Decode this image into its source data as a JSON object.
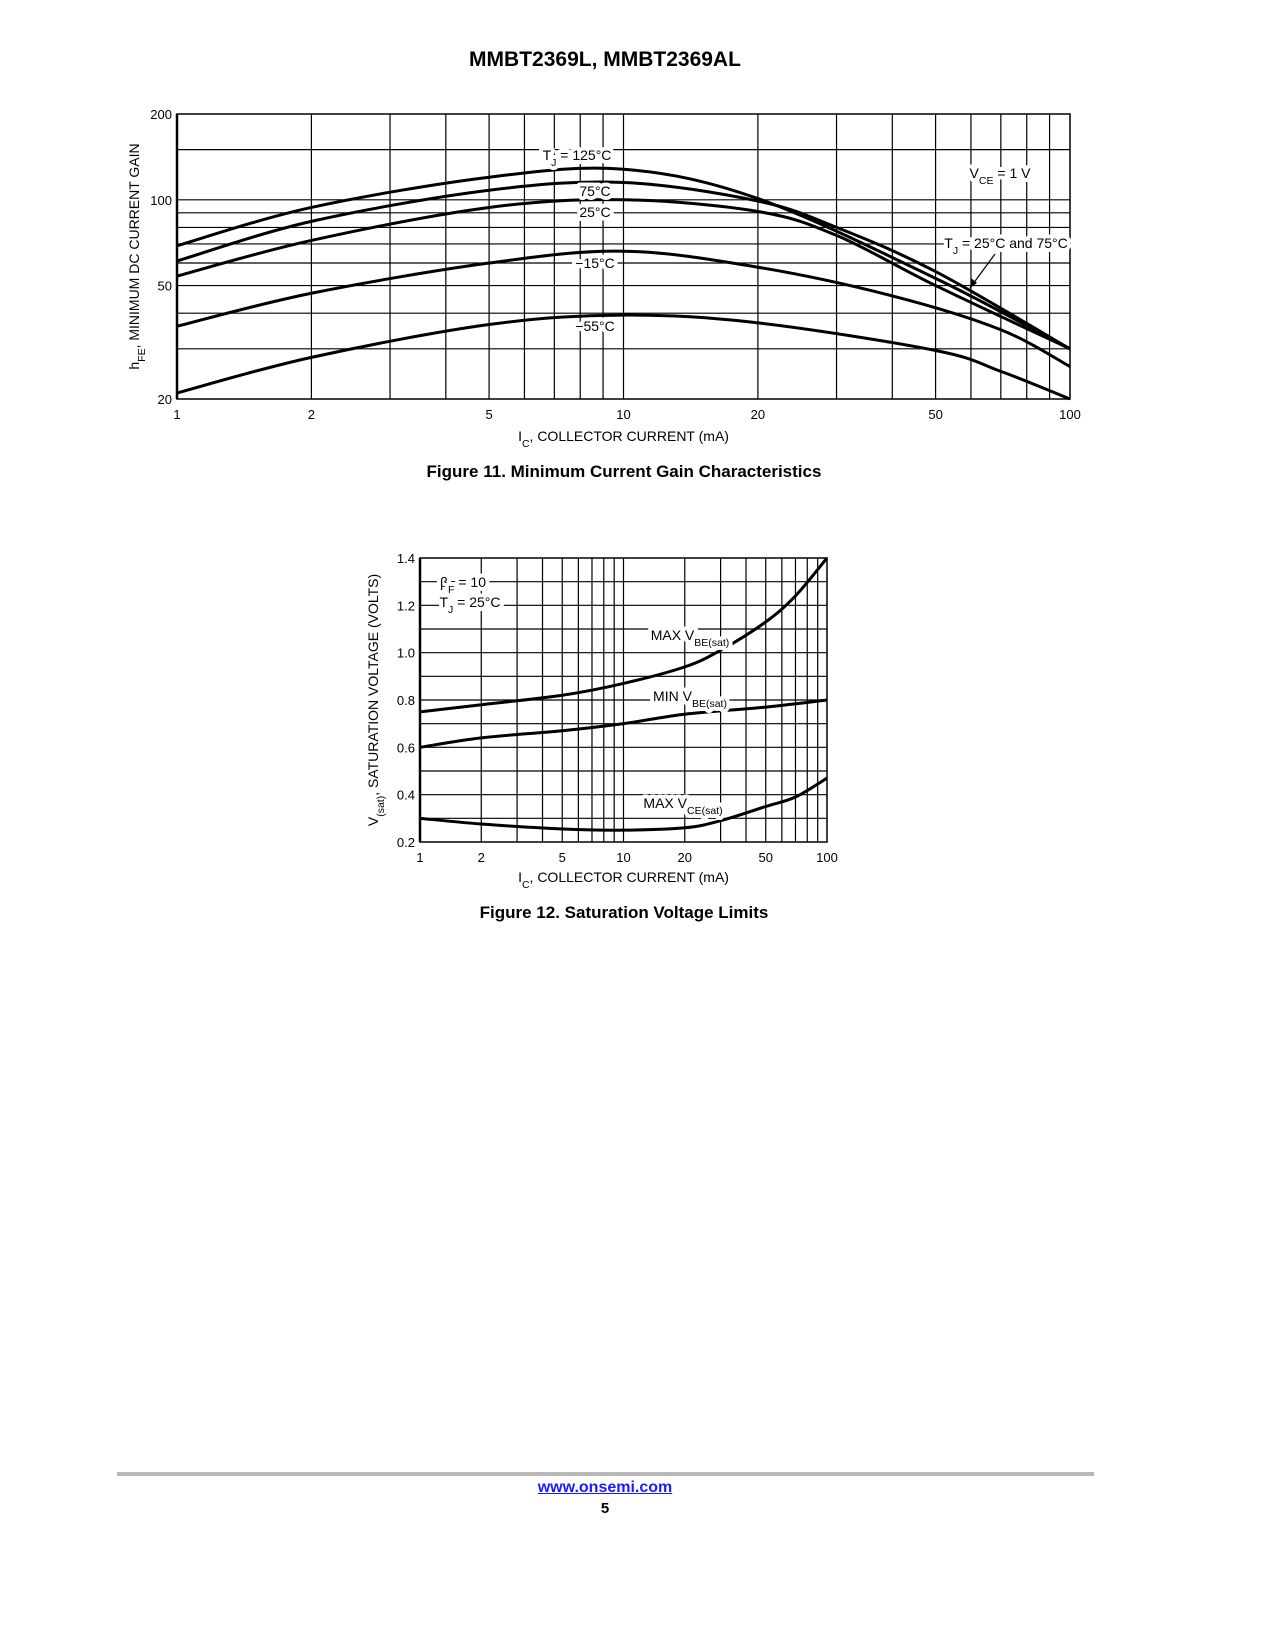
{
  "header": {
    "title": "MMBT2369L, MMBT2369AL"
  },
  "footer": {
    "link": "www.onsemi.com",
    "page": "5"
  },
  "chart_data": [
    {
      "type": "line",
      "caption": "Figure 11. Minimum Current Gain Characteristics",
      "xlabel": [
        {
          "t": "I"
        },
        {
          "sub": "C"
        },
        {
          "t": ", COLLECTOR CURRENT (mA)"
        }
      ],
      "ylabel": [
        {
          "t": "h"
        },
        {
          "sub": "FE"
        },
        {
          "t": ", MINIMUM DC CURRENT GAIN"
        }
      ],
      "xscale": "log",
      "yscale": "log",
      "xlim": [
        1,
        100
      ],
      "ylim": [
        20,
        200
      ],
      "xticks": [
        1,
        2,
        5,
        10,
        20,
        50,
        100
      ],
      "yticks": [
        20,
        50,
        100,
        200
      ],
      "xgrid": [
        2,
        3,
        4,
        5,
        6,
        7,
        8,
        9,
        10,
        20,
        30,
        40,
        50,
        60,
        70,
        80,
        90
      ],
      "ygrid": [
        30,
        40,
        50,
        60,
        70,
        80,
        90,
        100,
        150
      ],
      "grid": true,
      "series": [
        {
          "name": "TJ = 125°C",
          "x": [
            1,
            2,
            5,
            10,
            20,
            50,
            100
          ],
          "y": [
            69,
            94,
            120,
            128,
            101,
            53,
            30
          ]
        },
        {
          "name": "75°C",
          "x": [
            1,
            2,
            5,
            10,
            20,
            30,
            50,
            100
          ],
          "y": [
            61,
            84,
            108,
            115,
            99,
            80,
            56,
            30
          ]
        },
        {
          "name": "25°C",
          "x": [
            1,
            2,
            5,
            10,
            20,
            30,
            50,
            100
          ],
          "y": [
            54,
            72,
            94,
            100,
            91,
            75,
            50,
            30
          ]
        },
        {
          "name": "−15°C",
          "x": [
            1,
            2,
            5,
            10,
            20,
            40,
            70,
            100
          ],
          "y": [
            36,
            47,
            60,
            66,
            58,
            46,
            35,
            26
          ]
        },
        {
          "name": "−55°C",
          "x": [
            1,
            2,
            5,
            10,
            20,
            50,
            70,
            100
          ],
          "y": [
            21,
            28,
            36.5,
            39.4,
            37,
            29.6,
            25,
            20
          ]
        }
      ],
      "annotations": [
        [
          {
            "t": "T"
          },
          {
            "sub": "J"
          },
          {
            "t": " = 125°C"
          }
        ],
        [
          {
            "t": "75°C"
          }
        ],
        [
          {
            "t": "25°C"
          }
        ],
        [
          {
            "t": "−15°C"
          }
        ],
        [
          {
            "t": "−55°C"
          }
        ],
        [
          {
            "t": "V"
          },
          {
            "sub": "CE"
          },
          {
            "t": " = 1 V"
          }
        ],
        [
          {
            "t": "T"
          },
          {
            "sub": "J"
          },
          {
            "t": " = 25°C and 75°C"
          }
        ]
      ]
    },
    {
      "type": "line",
      "caption": "Figure 12. Saturation Voltage Limits",
      "xlabel": [
        {
          "t": "I"
        },
        {
          "sub": "C"
        },
        {
          "t": ", COLLECTOR CURRENT (mA)"
        }
      ],
      "ylabel": [
        {
          "t": "V"
        },
        {
          "sub": "(sat)"
        },
        {
          "t": ", SATURATION VOLTAGE (VOLTS)"
        }
      ],
      "xscale": "log",
      "yscale": "linear",
      "xlim": [
        1,
        100
      ],
      "ylim": [
        0.2,
        1.4
      ],
      "xticks": [
        1,
        2,
        5,
        10,
        20,
        50,
        100
      ],
      "yticks": [
        0.2,
        0.4,
        0.6,
        0.8,
        1.0,
        1.2,
        1.4
      ],
      "xgrid": [
        2,
        3,
        4,
        5,
        6,
        7,
        8,
        9,
        10,
        20,
        30,
        40,
        50,
        60,
        70,
        80,
        90
      ],
      "ygrid": [
        0.3,
        0.4,
        0.5,
        0.6,
        0.7,
        0.8,
        0.9,
        1.0,
        1.1,
        1.2,
        1.3
      ],
      "grid": true,
      "series": [
        {
          "name": "MAX VBE(sat)",
          "x": [
            1,
            2,
            5,
            10,
            20,
            30,
            50,
            70,
            100
          ],
          "y": [
            0.75,
            0.78,
            0.82,
            0.87,
            0.94,
            1.01,
            1.13,
            1.24,
            1.4
          ]
        },
        {
          "name": "MIN VBE(sat)",
          "x": [
            1,
            2,
            5,
            10,
            20,
            50,
            100
          ],
          "y": [
            0.6,
            0.64,
            0.67,
            0.7,
            0.74,
            0.77,
            0.8
          ]
        },
        {
          "name": "MAX VCE(sat)",
          "x": [
            1,
            2,
            5,
            10,
            20,
            30,
            50,
            70,
            100
          ],
          "y": [
            0.3,
            0.276,
            0.255,
            0.25,
            0.26,
            0.29,
            0.35,
            0.39,
            0.47
          ]
        }
      ],
      "annotations": [
        [
          {
            "t": "β"
          },
          {
            "sub": "F"
          },
          {
            "t": " = 10"
          }
        ],
        [
          {
            "t": "T"
          },
          {
            "sub": "J"
          },
          {
            "t": " = 25°C"
          }
        ],
        [
          {
            "t": "MAX V"
          },
          {
            "sub": "BE(sat)"
          }
        ],
        [
          {
            "t": "MIN V"
          },
          {
            "sub": "BE(sat)"
          }
        ],
        [
          {
            "t": "MAX V"
          },
          {
            "sub": "CE(sat)"
          }
        ]
      ]
    }
  ]
}
